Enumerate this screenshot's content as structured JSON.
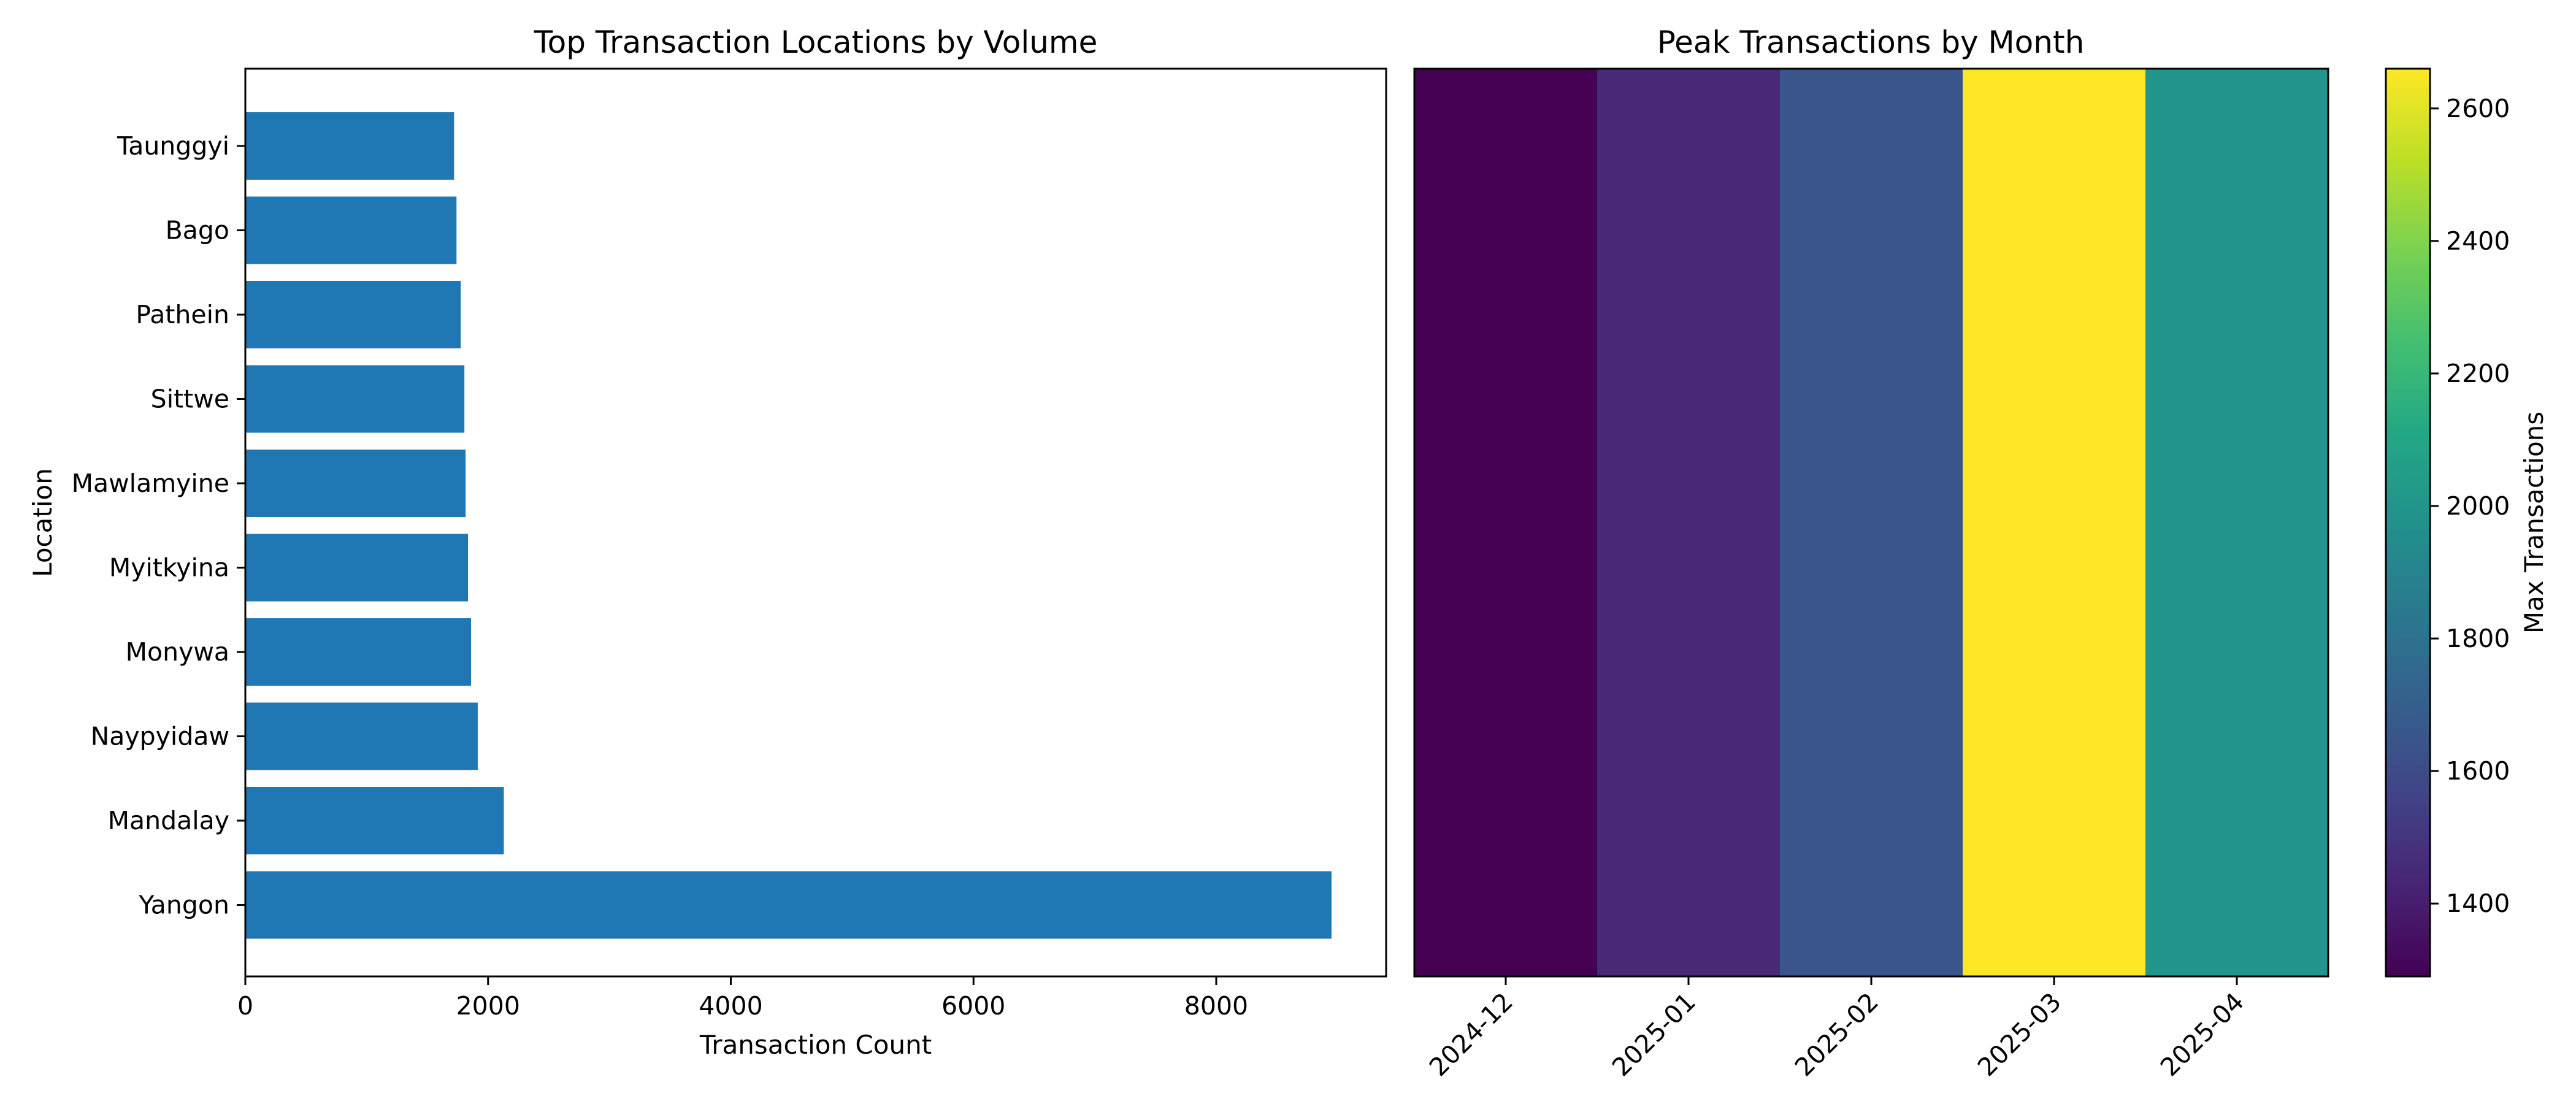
{
  "chart_data": [
    {
      "type": "bar",
      "orientation": "horizontal",
      "title": "Top Transaction Locations by Volume",
      "xlabel": "Transaction Count",
      "ylabel": "Location",
      "categories": [
        "Yangon",
        "Mandalay",
        "Naypyidaw",
        "Monywa",
        "Myitkyina",
        "Mawlamyine",
        "Sittwe",
        "Pathein",
        "Bago",
        "Taunggyi"
      ],
      "values": [
        8950,
        2130,
        1915,
        1860,
        1835,
        1815,
        1805,
        1775,
        1740,
        1720
      ],
      "xlim": [
        0,
        9400
      ],
      "xticks": [
        0,
        2000,
        4000,
        6000,
        8000
      ],
      "color": "#1f77b4",
      "grid": false
    },
    {
      "type": "heatmap",
      "title": "Peak Transactions by Month",
      "categories": [
        "2024-12",
        "2025-01",
        "2025-02",
        "2025-03",
        "2025-04"
      ],
      "values": [
        1290,
        1450,
        1650,
        2660,
        1990
      ],
      "colormap": "viridis",
      "colorbar_label": "Max Transactions",
      "colorbar_range": [
        1290,
        2660
      ],
      "colorbar_ticks": [
        1400,
        1600,
        1800,
        2000,
        2200,
        2400,
        2600
      ]
    }
  ]
}
